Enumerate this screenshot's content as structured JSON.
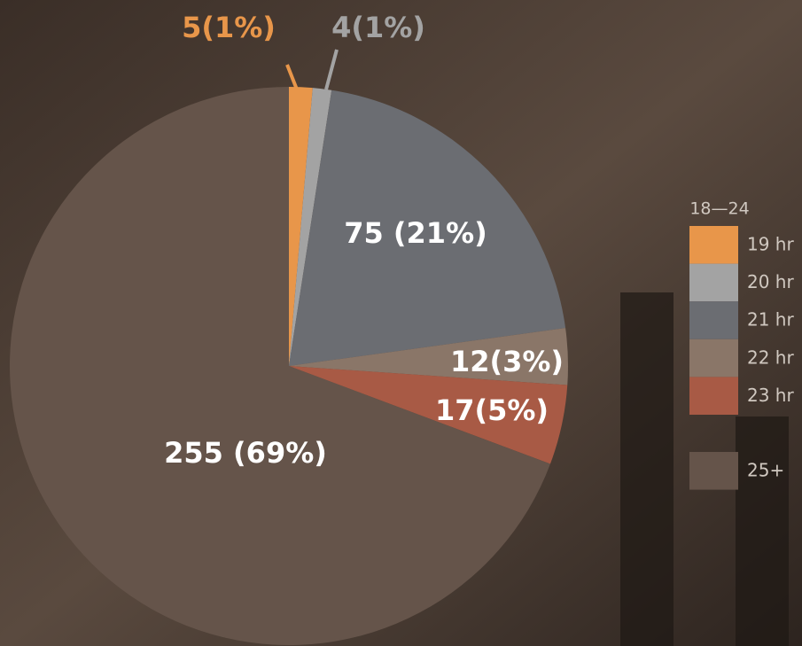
{
  "chart_data": {
    "type": "pie",
    "legend_title": "18—24",
    "categories": [
      "19 hr",
      "20 hr",
      "21 hr",
      "22 hr",
      "23 hr",
      "25+"
    ],
    "values": [
      5,
      4,
      75,
      12,
      17,
      255
    ],
    "value_labels": [
      "5(1%)",
      "4(1%)",
      "75 (21%)",
      "12(3%)",
      "17(5%)",
      "255 (69%)"
    ],
    "colors": [
      "#e8964a",
      "#a3a3a3",
      "#6b6d72",
      "#8a7668",
      "#a85a45",
      "#65544a"
    ],
    "legend": "right"
  }
}
